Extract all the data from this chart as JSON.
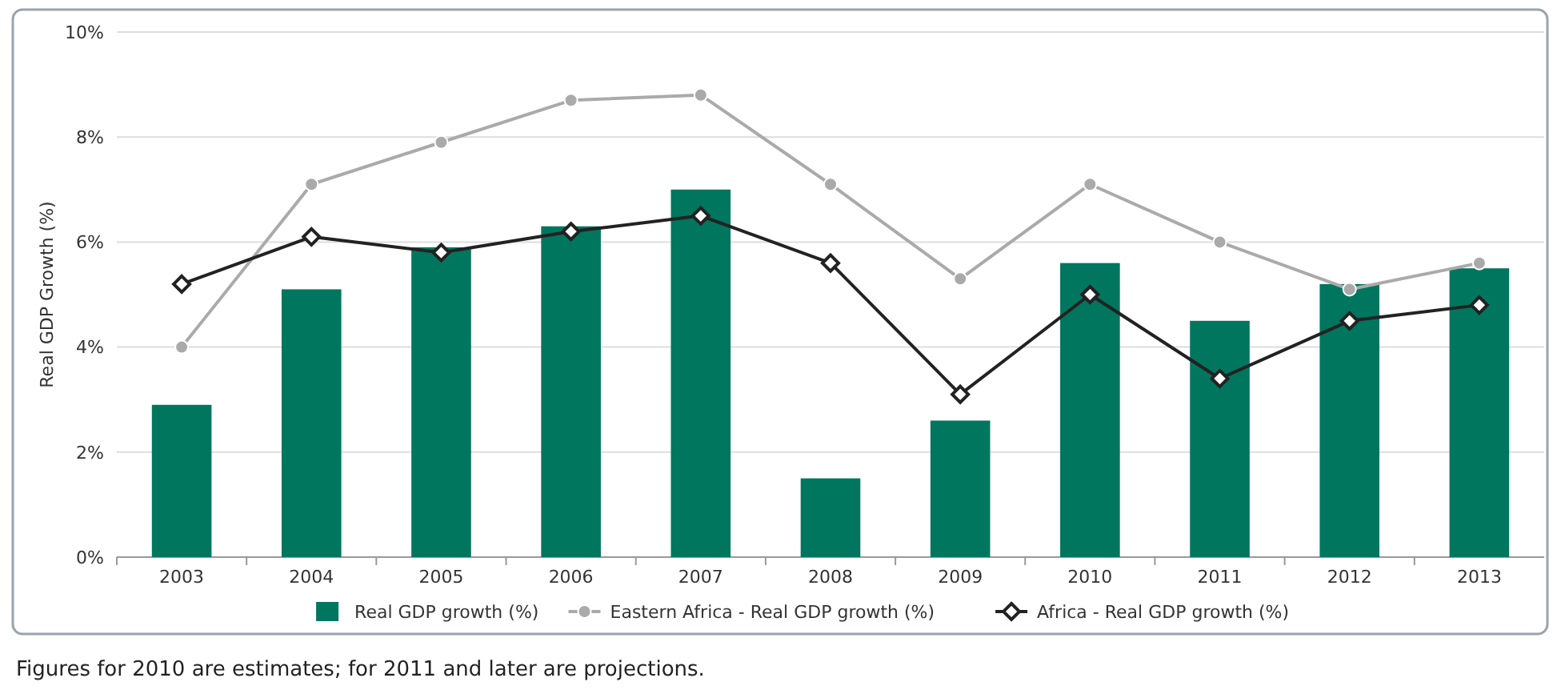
{
  "chart_data": {
    "type": "bar",
    "ylabel": "Real GDP Growth (%)",
    "categories": [
      "2003",
      "2004",
      "2005",
      "2006",
      "2007",
      "2008",
      "2009",
      "2010",
      "2011",
      "2012",
      "2013"
    ],
    "series": [
      {
        "name": "Real GDP growth (%)",
        "color": "#00765e",
        "values": [
          2.9,
          5.1,
          5.9,
          6.3,
          7.0,
          1.5,
          2.6,
          5.6,
          4.5,
          5.2,
          5.5
        ]
      },
      {
        "name": "Eastern Africa - Real GDP growth (%)",
        "type": "line",
        "color": "#aaaaaa",
        "marker": "circle",
        "values": [
          4.0,
          7.1,
          7.9,
          8.7,
          8.8,
          7.1,
          5.3,
          7.1,
          6.0,
          5.1,
          5.6
        ]
      },
      {
        "name": "Africa - Real GDP growth (%)",
        "type": "line",
        "color": "#222222",
        "marker": "diamond",
        "values": [
          5.2,
          6.1,
          5.8,
          6.2,
          6.5,
          5.6,
          3.1,
          5.0,
          3.4,
          4.5,
          4.8
        ]
      }
    ],
    "ylim": [
      0,
      10
    ],
    "yticks": [
      {
        "value": 0,
        "label": "0%"
      },
      {
        "value": 2,
        "label": "2%"
      },
      {
        "value": 4,
        "label": "4%"
      },
      {
        "value": 6,
        "label": "6%"
      },
      {
        "value": 8,
        "label": "8%"
      },
      {
        "value": 10,
        "label": "10%"
      }
    ],
    "grid": "y",
    "legend": "bottom",
    "annotations": [
      "Figures for 2010 are estimates; for 2011 and later are projections."
    ]
  }
}
